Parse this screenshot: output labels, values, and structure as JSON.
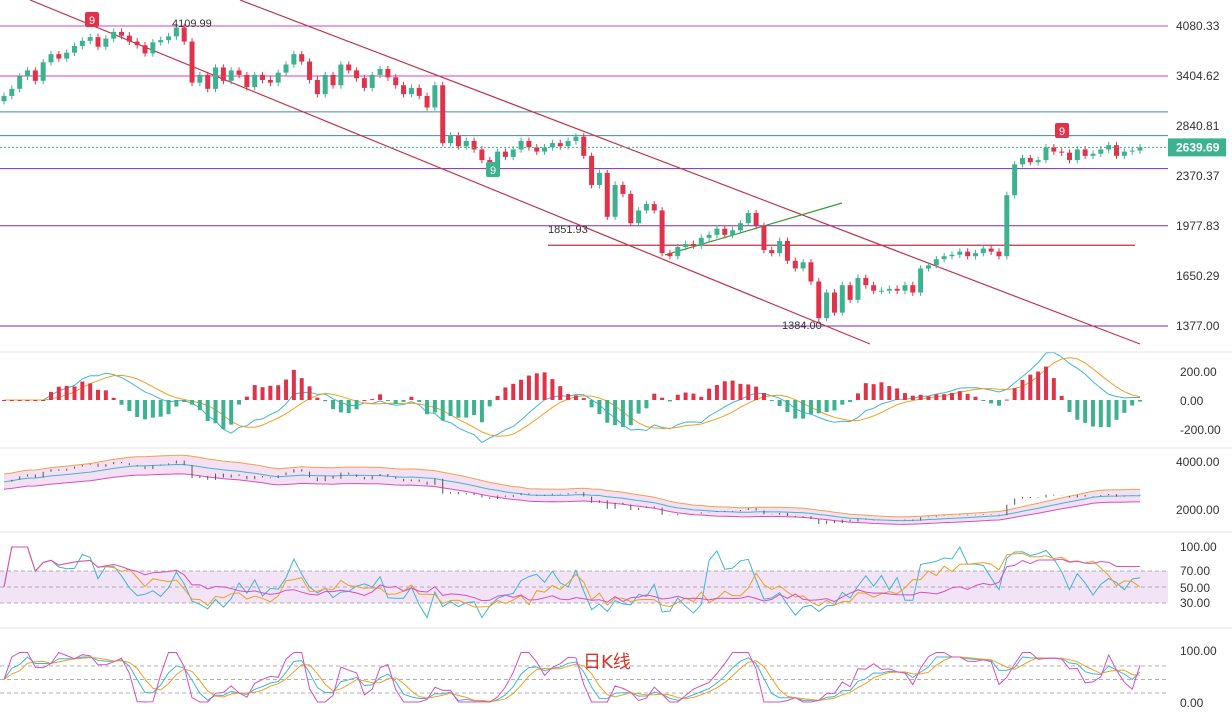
{
  "chart_data": [
    {
      "type": "candlestick",
      "panel": "price",
      "yaxis_ticks": [
        "4080.33",
        "3404.62",
        "2840.81",
        "2370.37",
        "1977.83",
        "1650.29",
        "1377.00"
      ],
      "current_price": "2639.69",
      "annotations": {
        "high_label": "4109.99",
        "mid_label": "1851.93",
        "low_label": "1384.00",
        "td_count_marks": [
          "9",
          "9",
          "9"
        ]
      },
      "horizontal_levels": [
        4080,
        3404,
        3000,
        2750,
        2440,
        1980,
        1851.93,
        1377
      ],
      "ohlc_close": [
        3180,
        3260,
        3400,
        3480,
        3350,
        3590,
        3700,
        3640,
        3720,
        3810,
        3880,
        3930,
        3800,
        3910,
        4000,
        3950,
        3870,
        3820,
        3710,
        3860,
        3890,
        3940,
        4060,
        3870,
        3330,
        3420,
        3260,
        3520,
        3350,
        3480,
        3420,
        3280,
        3420,
        3360,
        3330,
        3450,
        3560,
        3700,
        3600,
        3360,
        3200,
        3420,
        3300,
        3560,
        3480,
        3380,
        3270,
        3420,
        3500,
        3390,
        3300,
        3200,
        3270,
        3180,
        3050,
        3300,
        2680,
        2750,
        2650,
        2700,
        2620,
        2520,
        2460,
        2600,
        2550,
        2620,
        2700,
        2640,
        2600,
        2640,
        2680,
        2650,
        2700,
        2740,
        2560,
        2300,
        2400,
        2050,
        2300,
        2230,
        2000,
        2100,
        2150,
        2100,
        1800,
        1780,
        1840,
        1860,
        1850,
        1900,
        1920,
        1960,
        1920,
        1950,
        2000,
        2080,
        1980,
        1820,
        1800,
        1880,
        1750,
        1700,
        1740,
        1620,
        1420,
        1560,
        1450,
        1600,
        1520,
        1640,
        1600,
        1570,
        1570,
        1580,
        1570,
        1600,
        1560,
        1700,
        1720,
        1760,
        1780,
        1790,
        1810,
        1780,
        1800,
        1830,
        1810,
        1780,
        2220,
        2480,
        2540,
        2500,
        2520,
        2640,
        2600,
        2590,
        2520,
        2620,
        2560,
        2580,
        2620,
        2660,
        2560,
        2600,
        2610,
        2639.69
      ]
    },
    {
      "type": "line",
      "panel": "macd",
      "yaxis_ticks": [
        "200.00",
        "0.00",
        "-200.00"
      ]
    },
    {
      "type": "line",
      "panel": "bollinger",
      "yaxis_ticks": [
        "4000.00",
        "2000.00"
      ]
    },
    {
      "type": "line",
      "panel": "rsi",
      "yaxis_ticks": [
        "100.00",
        "70.00",
        "50.00",
        "30.00"
      ]
    },
    {
      "type": "line",
      "panel": "kdj",
      "yaxis_ticks": [
        "100.00",
        "0.00"
      ],
      "watermark": "日K线"
    }
  ],
  "colors": {
    "up": "#3db28f",
    "down": "#e0334a",
    "channel": "#c0334a",
    "level_magenta": "#d63fbf",
    "level_purple": "#7c2bb0",
    "level_teal": "#3f8f99",
    "macd_dif": "#3fb6d4",
    "macd_dea": "#f0a020",
    "boll_upper": "#f0a050",
    "boll_lower": "#d64fc0",
    "boll_mid": "#3fb6d4",
    "rsi_band": "#f2e3f7"
  }
}
